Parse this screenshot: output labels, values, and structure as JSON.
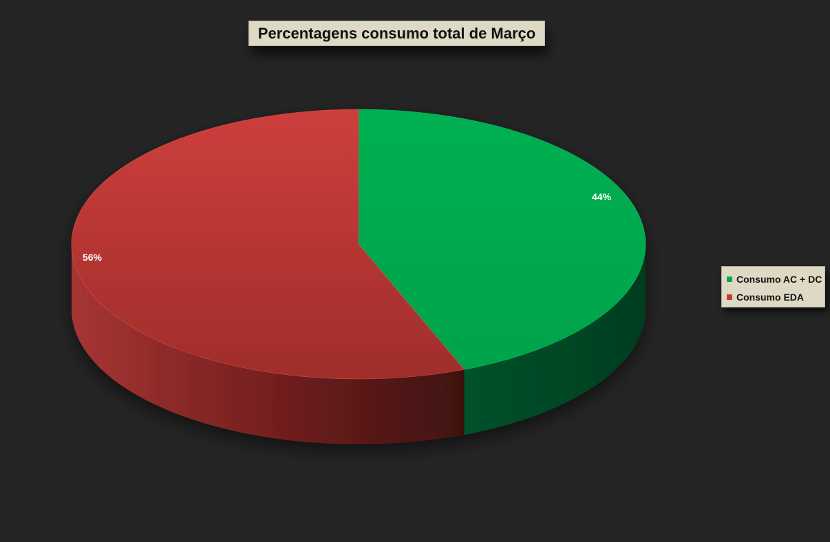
{
  "chart_data": {
    "type": "pie",
    "title": "Percentagens consumo total de Março",
    "categories": [
      "Consumo AC + DC",
      "Consumo EDA"
    ],
    "values": [
      44,
      56
    ],
    "data_labels": [
      "44%",
      "56%"
    ],
    "colors": [
      "#00aa4f",
      "#c23a38"
    ],
    "legend_position": "right",
    "style": "3d"
  }
}
